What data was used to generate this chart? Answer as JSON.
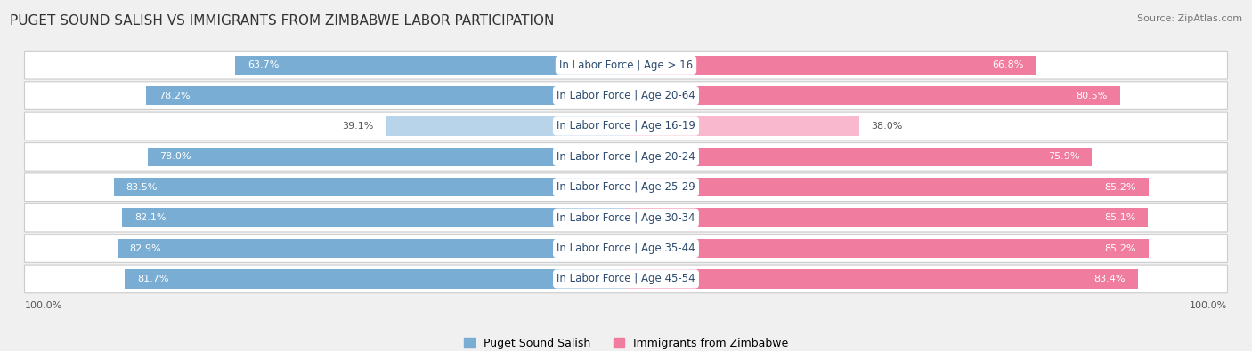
{
  "title": "PUGET SOUND SALISH VS IMMIGRANTS FROM ZIMBABWE LABOR PARTICIPATION",
  "source": "Source: ZipAtlas.com",
  "categories": [
    "In Labor Force | Age > 16",
    "In Labor Force | Age 20-64",
    "In Labor Force | Age 16-19",
    "In Labor Force | Age 20-24",
    "In Labor Force | Age 25-29",
    "In Labor Force | Age 30-34",
    "In Labor Force | Age 35-44",
    "In Labor Force | Age 45-54"
  ],
  "puget_values": [
    63.7,
    78.2,
    39.1,
    78.0,
    83.5,
    82.1,
    82.9,
    81.7
  ],
  "zimbabwe_values": [
    66.8,
    80.5,
    38.0,
    75.9,
    85.2,
    85.1,
    85.2,
    83.4
  ],
  "puget_color": "#7aadd4",
  "puget_color_light": "#b8d4ea",
  "zimbabwe_color": "#f07ca0",
  "zimbabwe_color_light": "#f9b8ce",
  "bar_height": 0.62,
  "background_color": "#f0f0f0",
  "title_fontsize": 11,
  "label_fontsize": 8.5,
  "value_fontsize": 8,
  "legend_fontsize": 9,
  "axis_label_fontsize": 8,
  "source_fontsize": 8
}
